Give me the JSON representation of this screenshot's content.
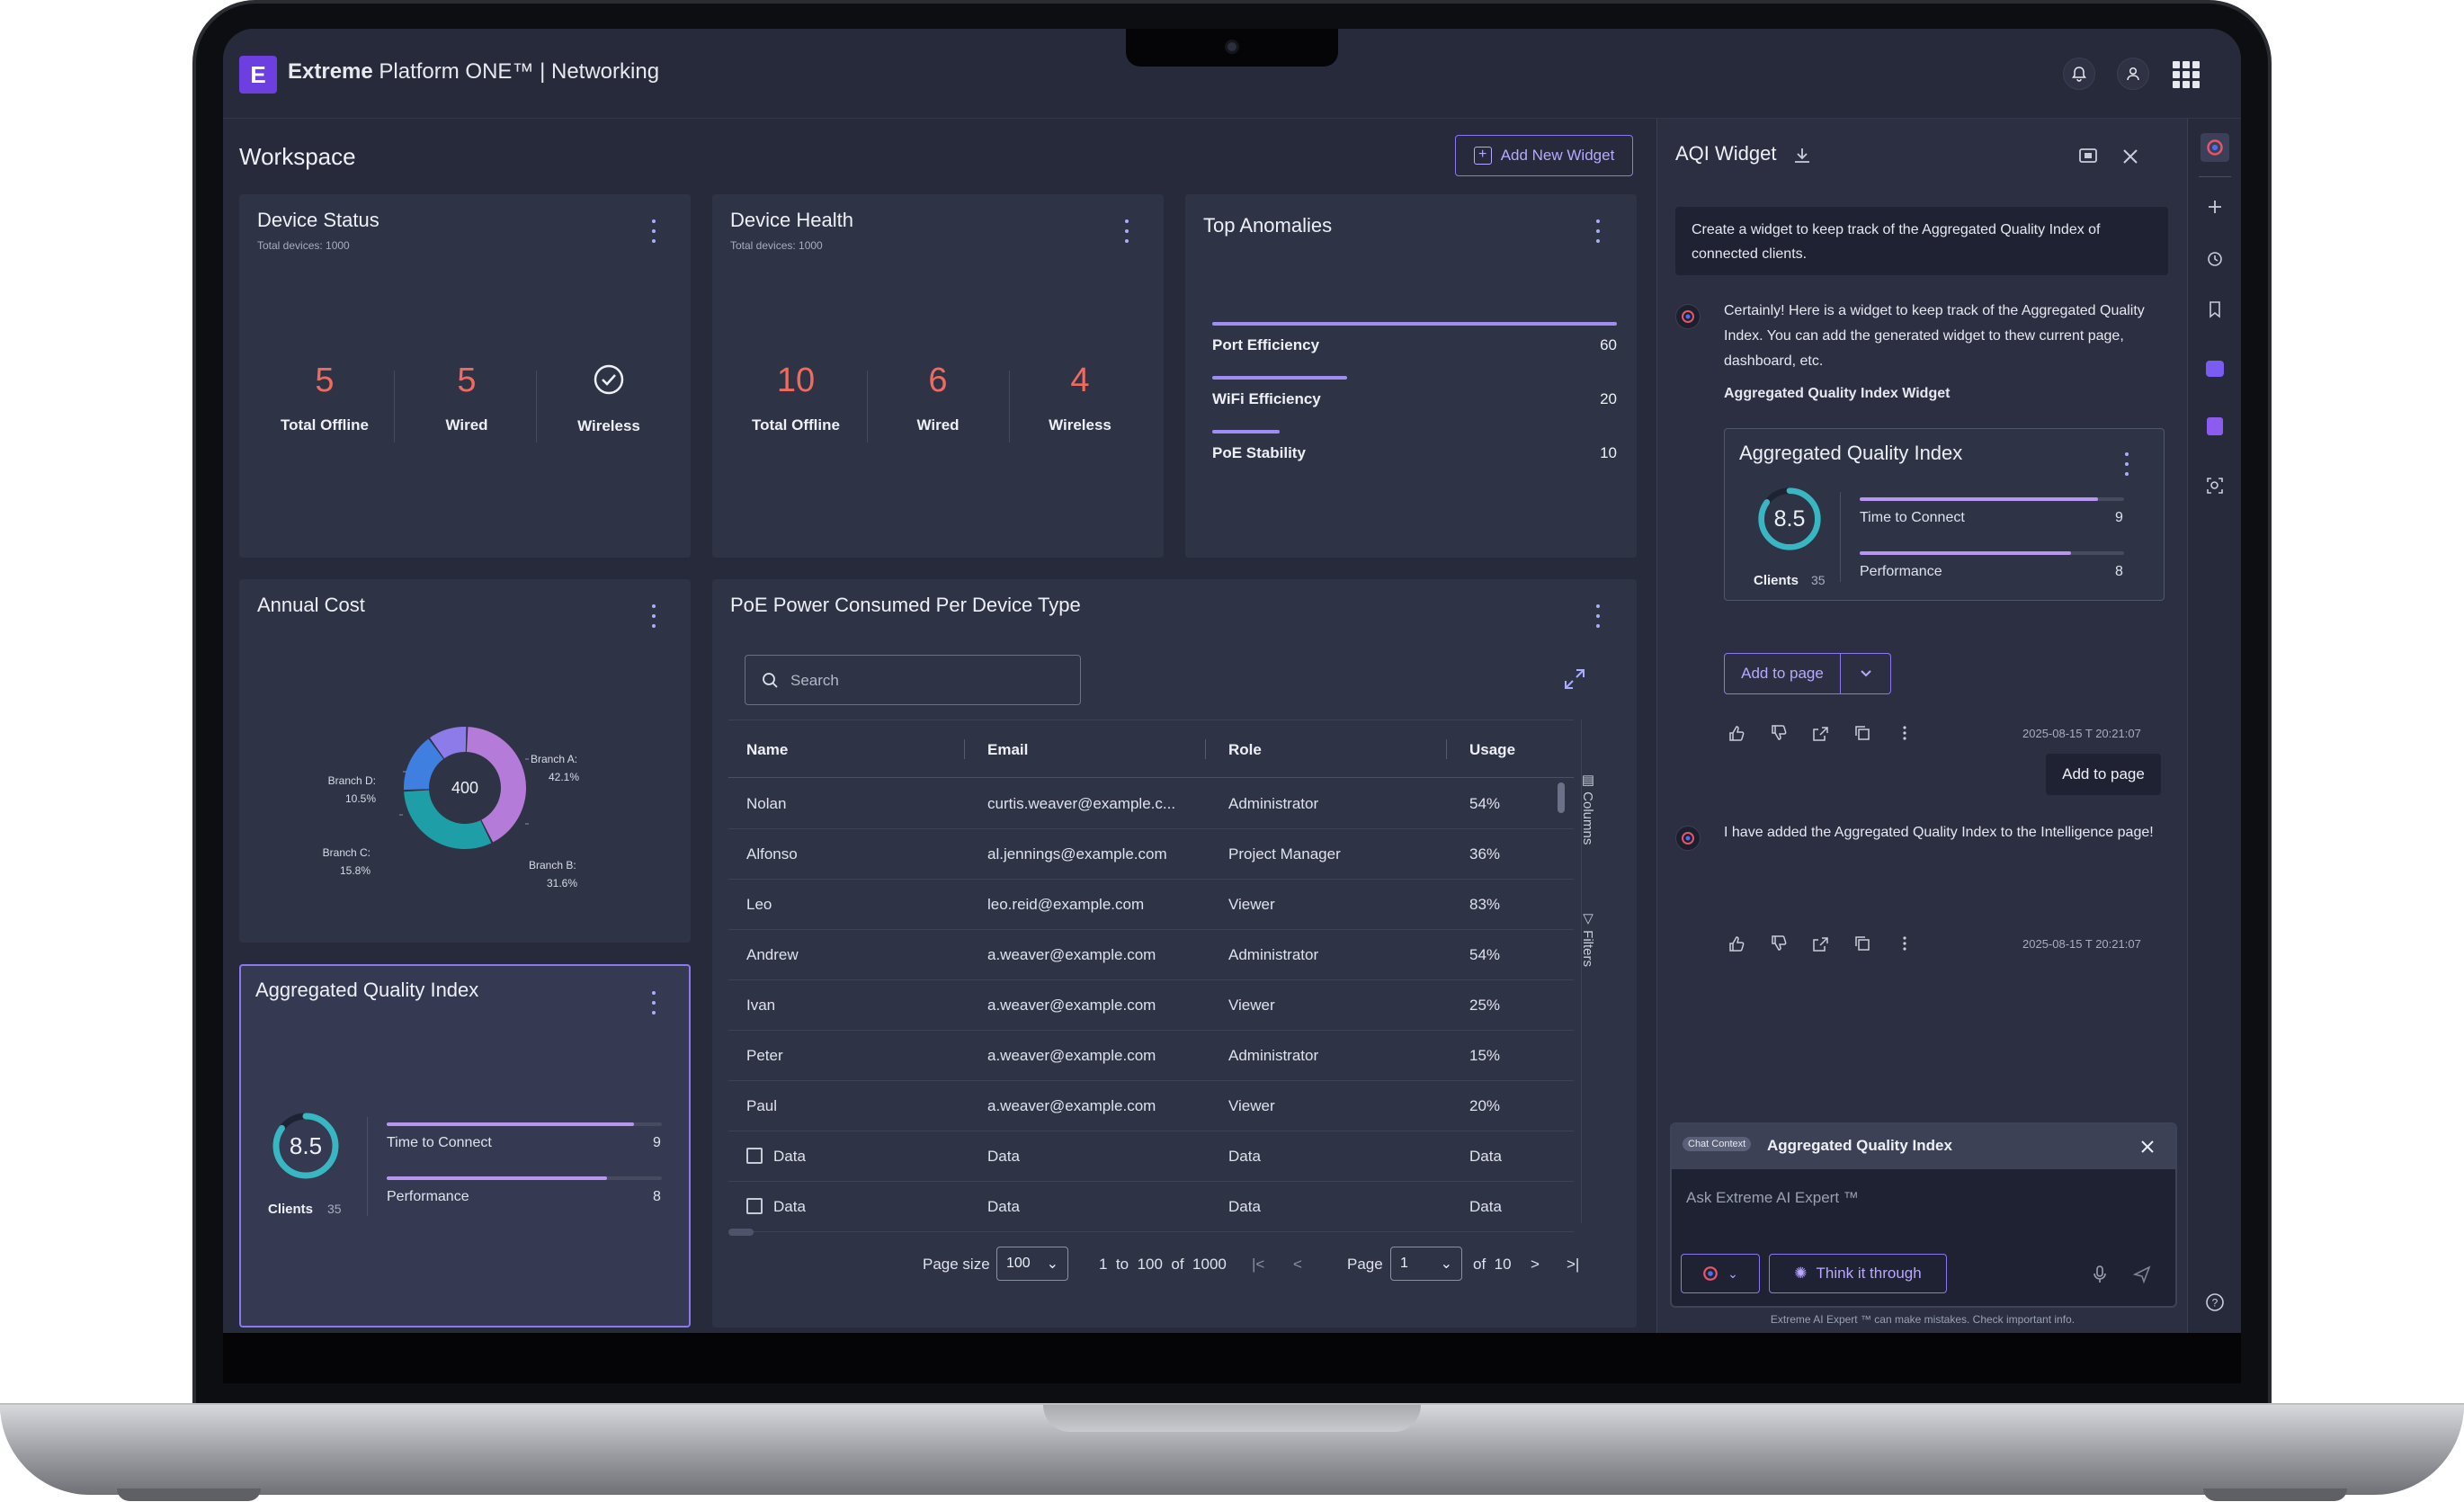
{
  "app": {
    "brand_bold": "Extreme",
    "brand_rest": " Platform ONE™ | Networking",
    "logo_letter": "E"
  },
  "workspace": {
    "title": "Workspace",
    "add_widget_label": "Add New Widget"
  },
  "device_status": {
    "title": "Device Status",
    "subtitle": "Total devices: 1000",
    "stats": [
      {
        "value": "5",
        "label": "Total Offline"
      },
      {
        "value": "5",
        "label": "Wired"
      },
      {
        "value": "",
        "label": "Wireless"
      }
    ]
  },
  "device_health": {
    "title": "Device Health",
    "subtitle": "Total devices: 1000",
    "stats": [
      {
        "value": "10",
        "label": "Total Offline"
      },
      {
        "value": "6",
        "label": "Wired"
      },
      {
        "value": "4",
        "label": "Wireless"
      }
    ]
  },
  "top_anomalies": {
    "title": "Top Anomalies",
    "items": [
      {
        "label": "Port Efficiency",
        "value": "60",
        "fraction": 1.0
      },
      {
        "label": "WiFi Efficiency",
        "value": "20",
        "fraction": 0.333
      },
      {
        "label": "PoE Stability",
        "value": "10",
        "fraction": 0.167
      }
    ]
  },
  "annual_cost": {
    "title": "Annual Cost",
    "center": "400",
    "slices": [
      {
        "name": "Branch A:",
        "pct": "42.1%",
        "value": 42.1,
        "color": "#b57bd9"
      },
      {
        "name": "Branch B:",
        "pct": "31.6%",
        "value": 31.6,
        "color": "#1e9fa8"
      },
      {
        "name": "Branch C:",
        "pct": "15.8%",
        "value": 15.8,
        "color": "#3f7fe0"
      },
      {
        "name": "Branch D:",
        "pct": "10.5%",
        "value": 10.5,
        "color": "#8d7bea"
      }
    ]
  },
  "aqi_widget": {
    "title": "Aggregated Quality Index",
    "score": "8.5",
    "score_fraction": 0.85,
    "clients_label": "Clients",
    "clients_value": "35",
    "metrics": [
      {
        "label": "Time to Connect",
        "value": "9",
        "fraction": 0.9
      },
      {
        "label": "Performance",
        "value": "8",
        "fraction": 0.8
      }
    ]
  },
  "poe_table": {
    "title": "PoE Power Consumed Per Device Type",
    "search_placeholder": "Search",
    "columns": [
      "Name",
      "Email",
      "Role",
      "Usage"
    ],
    "rows": [
      [
        "Nolan",
        "curtis.weaver@example.c...",
        "Administrator",
        "54%"
      ],
      [
        "Alfonso",
        "al.jennings@example.com",
        "Project Manager",
        "36%"
      ],
      [
        "Leo",
        "leo.reid@example.com",
        "Viewer",
        "83%"
      ],
      [
        "Andrew",
        "a.weaver@example.com",
        "Administrator",
        "54%"
      ],
      [
        "Ivan",
        "a.weaver@example.com",
        "Viewer",
        "25%"
      ],
      [
        "Peter",
        "a.weaver@example.com",
        "Administrator",
        "15%"
      ],
      [
        "Paul",
        "a.weaver@example.com",
        "Viewer",
        "20%"
      ],
      [
        "Data",
        "Data",
        "Data",
        "Data"
      ],
      [
        "Data",
        "Data",
        "Data",
        "Data"
      ]
    ],
    "side_columns": "Columns",
    "side_filters": "Filters",
    "pager": {
      "page_size_label": "Page size",
      "page_size": "100",
      "range_from": "1",
      "to_label": "to",
      "range_to": "100",
      "of_label": "of",
      "total": "1000",
      "page_label": "Page",
      "page": "1",
      "page_of": "of",
      "pages": "10"
    }
  },
  "ai_panel": {
    "title": "AQI Widget",
    "user_message": "Create a widget to keep track of the Aggregated Quality Index of connected clients.",
    "reply_1": "Certainly! Here is a widget to keep track of the Aggregated Quality Index. You can add the generated widget to thew current page, dashboard, etc.",
    "widget_heading": "Aggregated Quality Index Widget",
    "add_to_page": "Add to page",
    "timestamp_1": "2025-08-15 T 20:21:07",
    "user_chip": "Add to page",
    "reply_2": "I have added the Aggregated Quality Index to the Intelligence page!",
    "timestamp_2": "2025-08-15 T 20:21:07",
    "chat_context_badge": "Chat Context",
    "chat_context_title": "Aggregated Quality Index",
    "input_placeholder": "Ask Extreme AI Expert ™",
    "think_label": "Think it through",
    "disclaimer": "Extreme AI Expert ™ can make mistakes. Check important info."
  }
}
